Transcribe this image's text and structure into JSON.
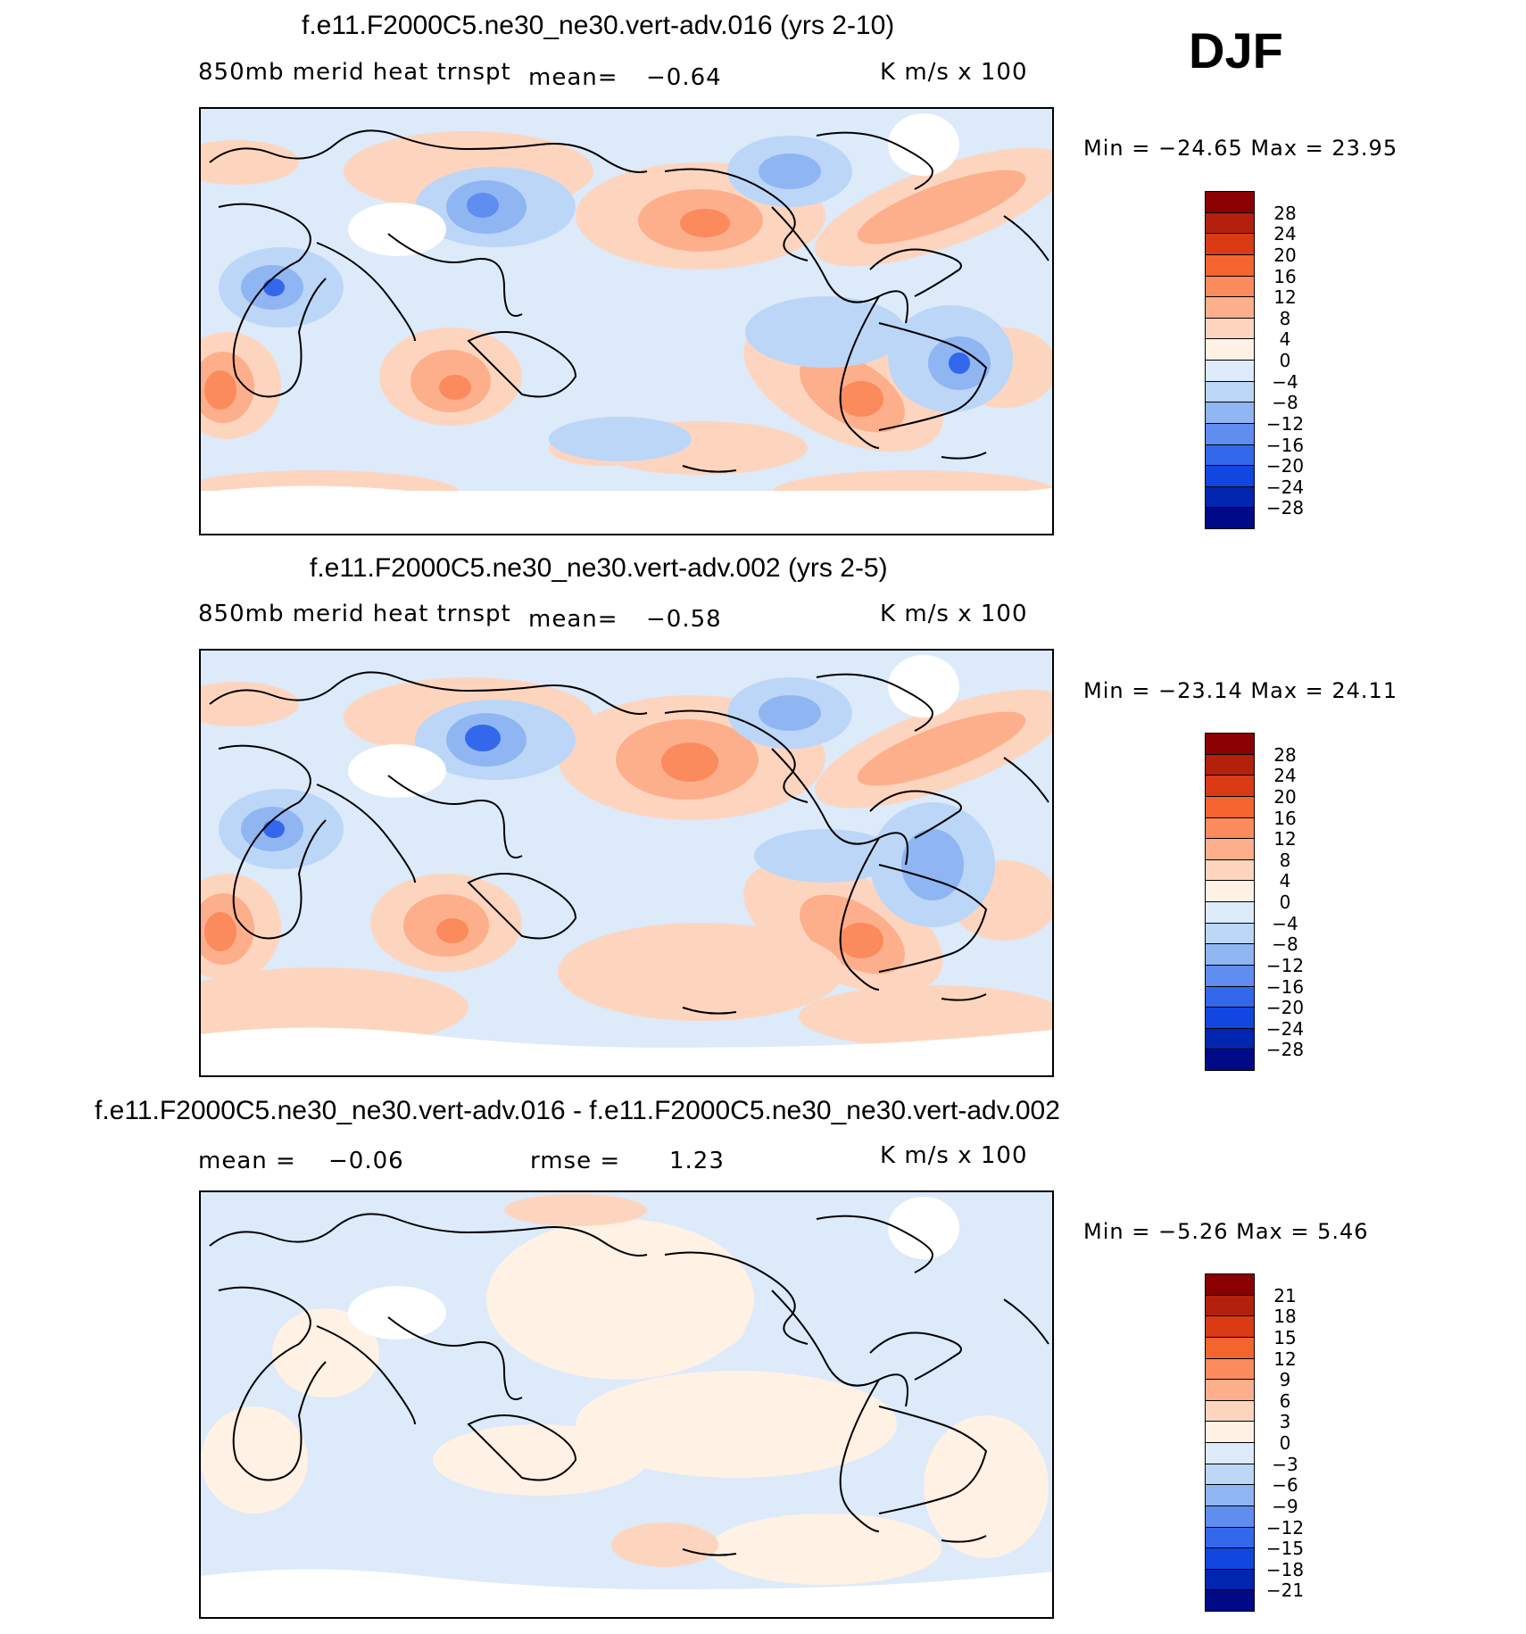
{
  "season": "DJF",
  "panels": [
    {
      "title": "f.e11.F2000C5.ne30_ne30.vert-adv.016 (yrs 2-10)",
      "variable": "850mb merid heat trnspt",
      "mean_label": "mean=",
      "mean_value": "−0.64",
      "units": "K m/s x 100",
      "minmax": "Min = −24.65 Max =   23.95",
      "colorbar": {
        "labels": [
          "28",
          "24",
          "20",
          "16",
          "12",
          "8",
          "4",
          "0",
          "−4",
          "−8",
          "−12",
          "−16",
          "−20",
          "−24",
          "−28"
        ],
        "colors": [
          "#8b0000",
          "#b3200b",
          "#da3a14",
          "#f4642e",
          "#fb8a5c",
          "#fdaf8b",
          "#fdd5bf",
          "#fff1e4",
          "#dceafa",
          "#bcd6f7",
          "#8fb5f3",
          "#5f8ef0",
          "#3468ec",
          "#1147e0",
          "#0026b0",
          "#000a87"
        ]
      }
    },
    {
      "title": "f.e11.F2000C5.ne30_ne30.vert-adv.002 (yrs 2-5)",
      "variable": "850mb merid heat trnspt",
      "mean_label": "mean=",
      "mean_value": "−0.58",
      "units": "K m/s x 100",
      "minmax": "Min = −23.14 Max =   24.11",
      "colorbar": {
        "labels": [
          "28",
          "24",
          "20",
          "16",
          "12",
          "8",
          "4",
          "0",
          "−4",
          "−8",
          "−12",
          "−16",
          "−20",
          "−24",
          "−28"
        ],
        "colors": [
          "#8b0000",
          "#b3200b",
          "#da3a14",
          "#f4642e",
          "#fb8a5c",
          "#fdaf8b",
          "#fdd5bf",
          "#fff1e4",
          "#dceafa",
          "#bcd6f7",
          "#8fb5f3",
          "#5f8ef0",
          "#3468ec",
          "#1147e0",
          "#0026b0",
          "#000a87"
        ]
      }
    },
    {
      "title": "f.e11.F2000C5.ne30_ne30.vert-adv.016 - f.e11.F2000C5.ne30_ne30.vert-adv.002",
      "mean_label": "mean =",
      "mean_value": "−0.06",
      "rmse_label": "rmse =",
      "rmse_value": "1.23",
      "units": "K m/s x 100",
      "minmax": "Min =   −5.26 Max =    5.46",
      "colorbar": {
        "labels": [
          "21",
          "18",
          "15",
          "12",
          "9",
          "6",
          "3",
          "0",
          "−3",
          "−6",
          "−9",
          "−12",
          "−15",
          "−18",
          "−21"
        ],
        "colors": [
          "#8b0000",
          "#b3200b",
          "#da3a14",
          "#f4642e",
          "#fb8a5c",
          "#fdaf8b",
          "#fdd5bf",
          "#fff1e4",
          "#dceafa",
          "#bcd6f7",
          "#8fb5f3",
          "#5f8ef0",
          "#3468ec",
          "#1147e0",
          "#0026b0",
          "#000a87"
        ]
      }
    }
  ]
}
